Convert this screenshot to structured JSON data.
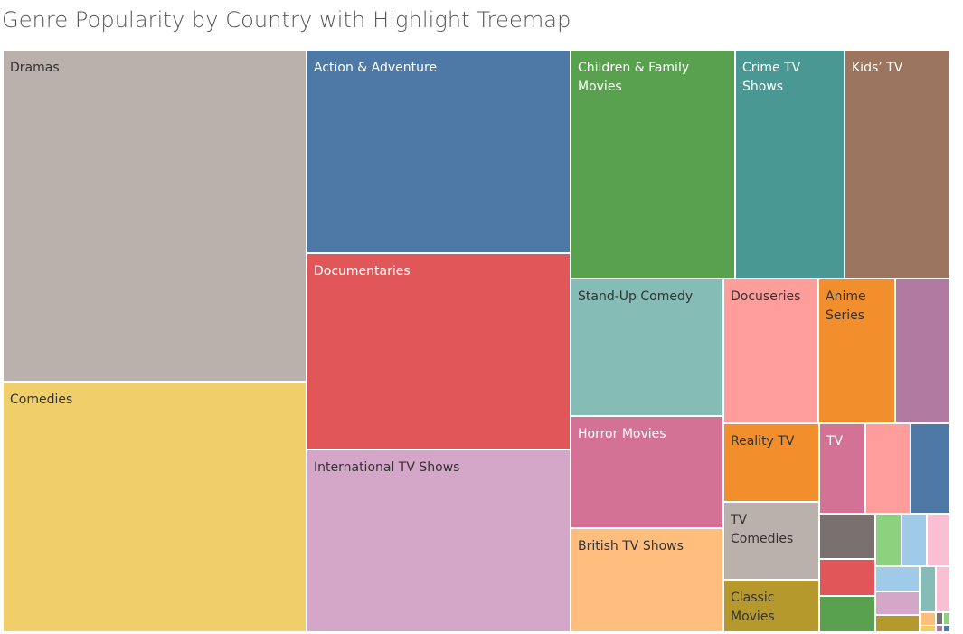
{
  "chart_data": {
    "type": "treemap",
    "title": "Genre Popularity by Country with Highlight Treemap",
    "items": [
      {
        "name": "Dramas",
        "label": "Dramas",
        "value": 12220,
        "color": "#bab0ac",
        "label_color": "#333333"
      },
      {
        "name": "Comedies",
        "label": "Comedies",
        "value": 9268,
        "color": "#f0ce69",
        "label_color": "#333333"
      },
      {
        "name": "Action & Adventure",
        "label": "Action & Adventure",
        "value": 6541,
        "color": "#4e79a7",
        "label_color": "#ffffff"
      },
      {
        "name": "Documentaries",
        "label": "Documentaries",
        "value": 6338,
        "color": "#e15759",
        "label_color": "#ffffff"
      },
      {
        "name": "International TV Shows",
        "label": "International TV Shows",
        "value": 5961,
        "color": "#d4a6c8",
        "label_color": "#333333"
      },
      {
        "name": "Children & Family Movies",
        "label": "Children & Family\nMovies",
        "value": 4548,
        "color": "#59a14f",
        "label_color": "#ffffff"
      },
      {
        "name": "Crime TV Shows",
        "label": "Crime TV\nShows",
        "value": 3042,
        "color": "#499894",
        "label_color": "#ffffff"
      },
      {
        "name": "Kids' TV",
        "label": "Kids’ TV",
        "value": 2946,
        "color": "#9c755f",
        "label_color": "#ffffff"
      },
      {
        "name": "Stand-Up Comedy",
        "label": "Stand-Up Comedy",
        "value": 2520,
        "color": "#86bcb6",
        "label_color": "#333333"
      },
      {
        "name": "Docuseries",
        "label": "Docuseries",
        "value": 1688,
        "color": "#ff9d9a",
        "label_color": "#333333"
      },
      {
        "name": "Anime Series",
        "label": "Anime\nSeries",
        "value": 1290,
        "color": "#f28e2b",
        "label_color": "#333333"
      },
      {
        "name": "Horror Movies",
        "label": "Horror Movies",
        "value": 2072,
        "color": "#d37295",
        "label_color": "#ffffff"
      },
      {
        "name": "British TV Shows",
        "label": "British TV Shows",
        "value": 2016,
        "color": "#ffbe7d",
        "label_color": "#333333"
      },
      {
        "name": "Reality TV",
        "label": "Reality TV",
        "value": 865,
        "color": "#f28e2b",
        "label_color": "#333333"
      },
      {
        "name": "TV",
        "label": "TV",
        "value": 475,
        "color": "#d37295",
        "label_color": "#ffffff"
      },
      {
        "name": "TV Comedies",
        "label": "TV Comedies",
        "value": 806,
        "color": "#bab0ac",
        "label_color": "#333333"
      },
      {
        "name": "Classic Movies",
        "label": "Classic\nMovies",
        "value": 535,
        "color": "#b6992d",
        "label_color": "#333333"
      },
      {
        "name": "",
        "label": "",
        "value": 935,
        "color": "#b07aa1",
        "label_color": "#333333"
      },
      {
        "name": "",
        "label": "",
        "value": 478,
        "color": "#ff9d9a",
        "label_color": "#333333"
      },
      {
        "name": "",
        "label": "",
        "value": 425,
        "color": "#4e79a7",
        "label_color": "#333333"
      },
      {
        "name": "",
        "label": "",
        "value": 300,
        "color": "#79706e",
        "label_color": "#333333"
      },
      {
        "name": "",
        "label": "",
        "value": 250,
        "color": "#e15759",
        "label_color": "#333333"
      },
      {
        "name": "",
        "label": "",
        "value": 240,
        "color": "#59a14f",
        "label_color": "#333333"
      },
      {
        "name": "",
        "label": "",
        "value": 170,
        "color": "#8cd17d",
        "label_color": "#333333"
      },
      {
        "name": "",
        "label": "",
        "value": 170,
        "color": "#a0cbe8",
        "label_color": "#333333"
      },
      {
        "name": "",
        "label": "",
        "value": 150,
        "color": "#fabfd2",
        "label_color": "#333333"
      },
      {
        "name": "",
        "label": "",
        "value": 140,
        "color": "#a0cbe8",
        "label_color": "#333333"
      },
      {
        "name": "",
        "label": "",
        "value": 120,
        "color": "#d4a6c8",
        "label_color": "#333333"
      },
      {
        "name": "",
        "label": "",
        "value": 110,
        "color": "#b6992d",
        "label_color": "#333333"
      },
      {
        "name": "",
        "label": "",
        "value": 100,
        "color": "#86bcb6",
        "label_color": "#333333"
      },
      {
        "name": "",
        "label": "",
        "value": 90,
        "color": "#fabfd2",
        "label_color": "#333333"
      },
      {
        "name": "",
        "label": "",
        "value": 20,
        "color": "#ffbe7d",
        "label_color": "#333333"
      },
      {
        "name": "",
        "label": "",
        "value": 12,
        "color": "#79706e",
        "label_color": "#333333"
      },
      {
        "name": "",
        "label": "",
        "value": 12,
        "color": "#8cd17d",
        "label_color": "#333333"
      },
      {
        "name": "",
        "label": "",
        "value": 10,
        "color": "#f1ce63",
        "label_color": "#333333"
      },
      {
        "name": "",
        "label": "",
        "value": 10,
        "color": "#b07aa1",
        "label_color": "#333333"
      },
      {
        "name": "",
        "label": "",
        "value": 8,
        "color": "#4e79a7",
        "label_color": "#333333"
      }
    ]
  }
}
